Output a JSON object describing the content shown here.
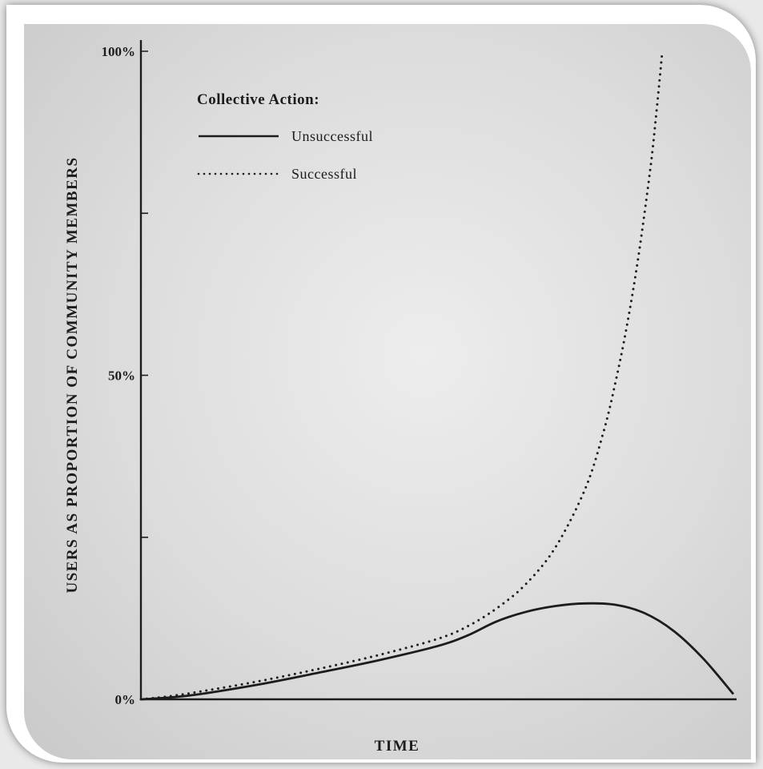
{
  "chart_data": {
    "type": "line",
    "title": "",
    "xlabel": "TIME",
    "ylabel": "USERS AS PROPORTION OF COMMUNITY MEMBERS",
    "ylim": [
      0,
      100
    ],
    "xlim": [
      0,
      100
    ],
    "y_ticks": [
      {
        "value": 0,
        "label": "0%"
      },
      {
        "value": 25,
        "label": ""
      },
      {
        "value": 50,
        "label": "50%"
      },
      {
        "value": 75,
        "label": ""
      },
      {
        "value": 100,
        "label": "100%"
      }
    ],
    "legend": {
      "title": "Collective Action:",
      "position": "top-left"
    },
    "series": [
      {
        "name": "Unsuccessful",
        "style": "solid",
        "color": "#1c1c1c",
        "x": [
          0,
          5,
          10,
          20,
          30,
          40,
          50,
          55,
          60,
          65,
          70,
          75,
          80,
          85,
          90,
          95,
          100
        ],
        "y": [
          0,
          0.3,
          0.8,
          2.3,
          4.1,
          6.0,
          8.2,
          9.8,
          12.0,
          13.5,
          14.4,
          14.8,
          14.6,
          13.3,
          10.5,
          6.2,
          0.8
        ]
      },
      {
        "name": "Successful",
        "style": "dotted",
        "color": "#1c1c1c",
        "x": [
          0,
          5,
          10,
          20,
          30,
          40,
          50,
          55,
          60,
          65,
          70,
          75,
          78,
          80,
          82,
          84,
          86,
          87,
          88
        ],
        "y": [
          0,
          0.5,
          1.2,
          2.8,
          4.7,
          6.8,
          9.3,
          11.2,
          14.0,
          17.8,
          23.5,
          32.5,
          41.0,
          48.5,
          57.5,
          68.5,
          82.0,
          90.5,
          100
        ]
      }
    ]
  }
}
